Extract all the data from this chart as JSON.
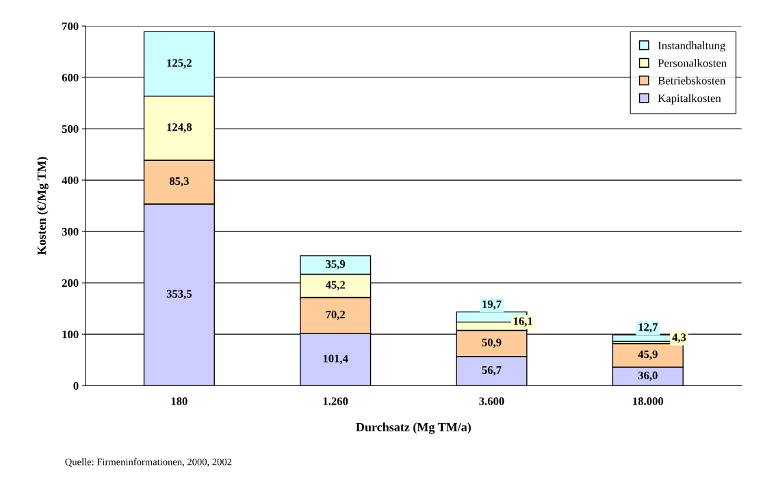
{
  "chart_data": {
    "type": "bar",
    "stacked": true,
    "xlabel": "Durchsatz (Mg TM/a)",
    "ylabel": "Kosten (€/Mg TM)",
    "categories": [
      "180",
      "1.260",
      "3.600",
      "18.000"
    ],
    "series": [
      {
        "name": "Kapitalkosten",
        "color": "#ccccff",
        "values": [
          353.5,
          101.4,
          56.7,
          36.0
        ],
        "value_labels": [
          "353,5",
          "101,4",
          "56,7",
          "36,0"
        ]
      },
      {
        "name": "Betriebskosten",
        "color": "#ffcc99",
        "values": [
          85.3,
          70.2,
          50.9,
          45.9
        ],
        "value_labels": [
          "85,3",
          "70,2",
          "50,9",
          "45,9"
        ]
      },
      {
        "name": "Personalkosten",
        "color": "#ffffcc",
        "values": [
          124.8,
          45.2,
          16.1,
          4.3
        ],
        "value_labels": [
          "124,8",
          "45,2",
          "16,1",
          "4,3"
        ]
      },
      {
        "name": "Instandhaltung",
        "color": "#ccffff",
        "values": [
          125.2,
          35.9,
          19.7,
          12.7
        ],
        "value_labels": [
          "125,2",
          "35,9",
          "19,7",
          "12,7"
        ]
      }
    ],
    "ylim": [
      0,
      700
    ],
    "yticks": [
      0,
      100,
      200,
      300,
      400,
      500,
      600,
      700
    ],
    "grid": "y",
    "legend": "top right",
    "annotations": [
      "Quelle: Firmeninformationen, 2000, 2002"
    ]
  }
}
